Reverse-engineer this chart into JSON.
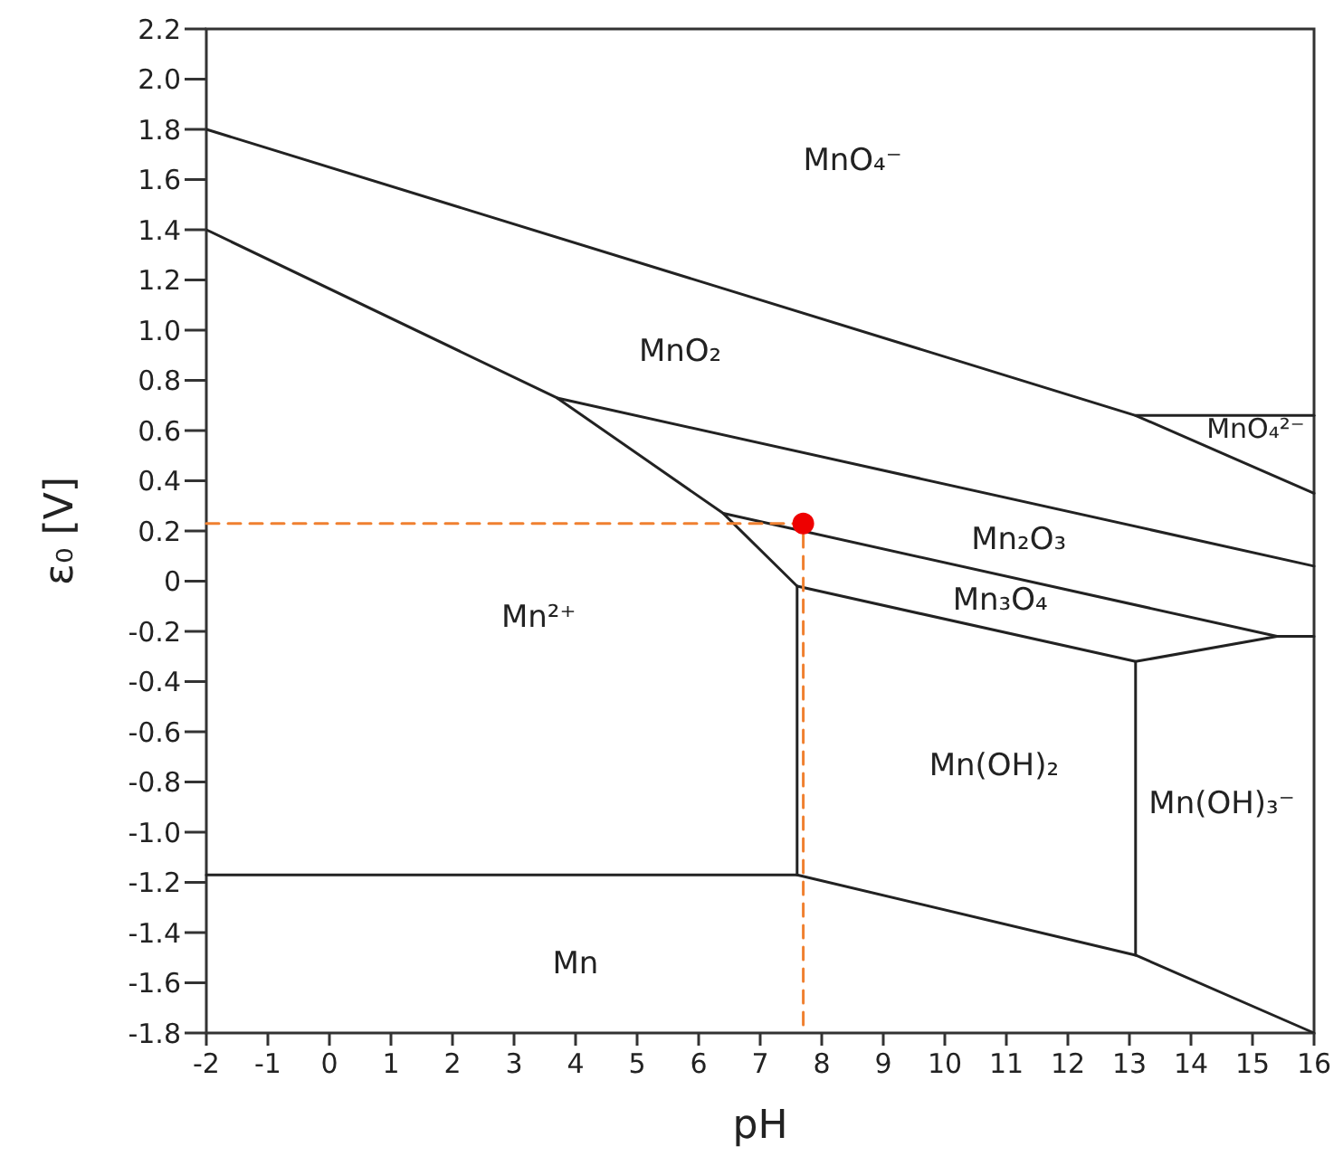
{
  "chart_data": {
    "type": "line",
    "xlabel": "pH",
    "ylabel": "ε₀ [V]",
    "xlim": [
      -2,
      16
    ],
    "ylim": [
      -1.8,
      2.2
    ],
    "xticks": [
      -2,
      -1,
      0,
      1,
      2,
      3,
      4,
      5,
      6,
      7,
      8,
      9,
      10,
      11,
      12,
      13,
      14,
      15,
      16
    ],
    "yticks": [
      -1.8,
      -1.6,
      -1.4,
      -1.2,
      {
        "value": -1,
        "label": "-1.0"
      },
      -0.8,
      -0.6,
      -0.4,
      -0.2,
      0,
      0.2,
      0.4,
      0.6,
      0.8,
      {
        "value": 1,
        "label": "1.0"
      },
      1.2,
      1.4,
      1.6,
      1.8,
      {
        "value": 2,
        "label": "2.0"
      },
      2.2
    ],
    "grid": false,
    "line_style": "solid",
    "series": [
      {
        "color": "#222222",
        "x": [
          -2,
          13.1,
          16
        ],
        "values": [
          1.8,
          0.66,
          0.35
        ]
      },
      {
        "color": "#222222",
        "x": [
          13.1,
          16
        ],
        "values": [
          0.66,
          0.66
        ]
      },
      {
        "color": "#222222",
        "x": [
          -2,
          3.7,
          6.4,
          7.6
        ],
        "values": [
          1.4,
          0.73,
          0.27,
          -0.02
        ]
      },
      {
        "color": "#222222",
        "x": [
          3.7,
          16
        ],
        "values": [
          0.73,
          0.06
        ]
      },
      {
        "color": "#222222",
        "x": [
          6.4,
          15.4,
          16
        ],
        "values": [
          0.27,
          -0.22,
          -0.22
        ]
      },
      {
        "color": "#222222",
        "x": [
          7.6,
          13.1,
          15.4
        ],
        "values": [
          -0.02,
          -0.32,
          -0.22
        ]
      },
      {
        "color": "#222222",
        "x": [
          7.6,
          7.6
        ],
        "values": [
          -0.02,
          -1.17
        ]
      },
      {
        "color": "#222222",
        "x": [
          -2,
          7.6,
          13.1,
          16
        ],
        "values": [
          -1.17,
          -1.17,
          -1.49,
          -1.8
        ]
      },
      {
        "color": "#222222",
        "x": [
          13.1,
          13.1
        ],
        "values": [
          -0.32,
          -1.49
        ]
      },
      {
        "color": "#f08030",
        "line_style": "dashed",
        "x": [
          -2,
          7.7,
          7.7
        ],
        "values": [
          0.23,
          0.23,
          -1.8
        ]
      },
      {
        "type": "scatter",
        "marker": "circle",
        "color": "#ee0000",
        "x": [
          7.7
        ],
        "values": [
          0.23
        ]
      }
    ],
    "annotations": [
      "MnO₄⁻",
      "MnO₂",
      "MnO₄²⁻",
      "Mn₂O₃",
      "Mn₃O₄",
      "Mn²⁺",
      "Mn(OH)₂",
      "Mn(OH)₃⁻",
      "Mn"
    ]
  }
}
